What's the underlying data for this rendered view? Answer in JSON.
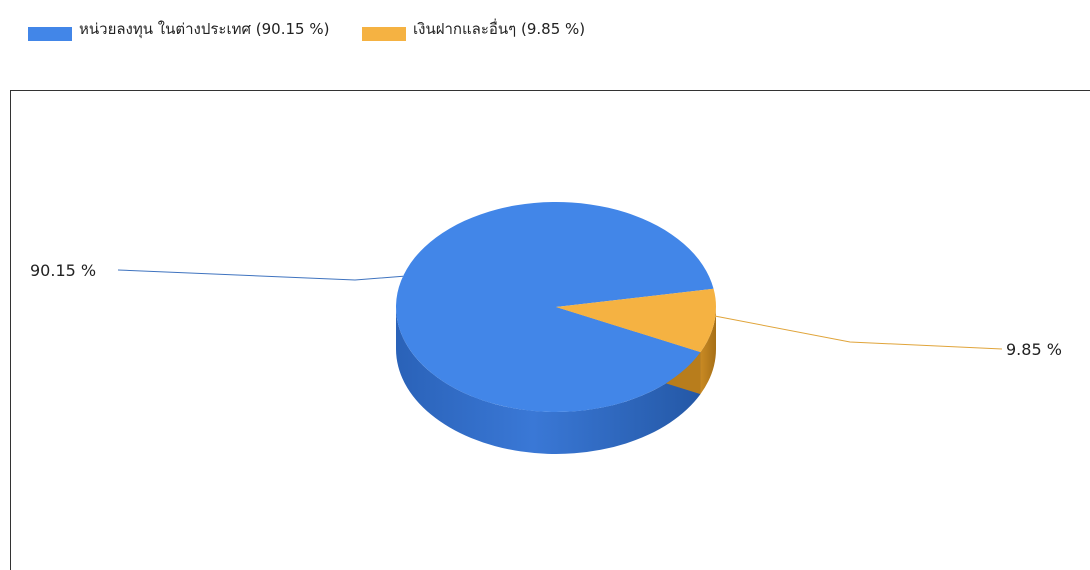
{
  "chart_data": {
    "type": "pie",
    "style": "3d",
    "legend_position": "top-left",
    "slices": [
      {
        "legend": "หน่วยลงทุน ในต่างประเทศ (90.15 %)",
        "label": "90.15 %",
        "value": 90.15,
        "color": "#4286e8"
      },
      {
        "legend": "เงินฝากและอื่นๆ (9.85 %)",
        "label": "9.85 %",
        "value": 9.85,
        "color": "#f5b242"
      }
    ]
  }
}
